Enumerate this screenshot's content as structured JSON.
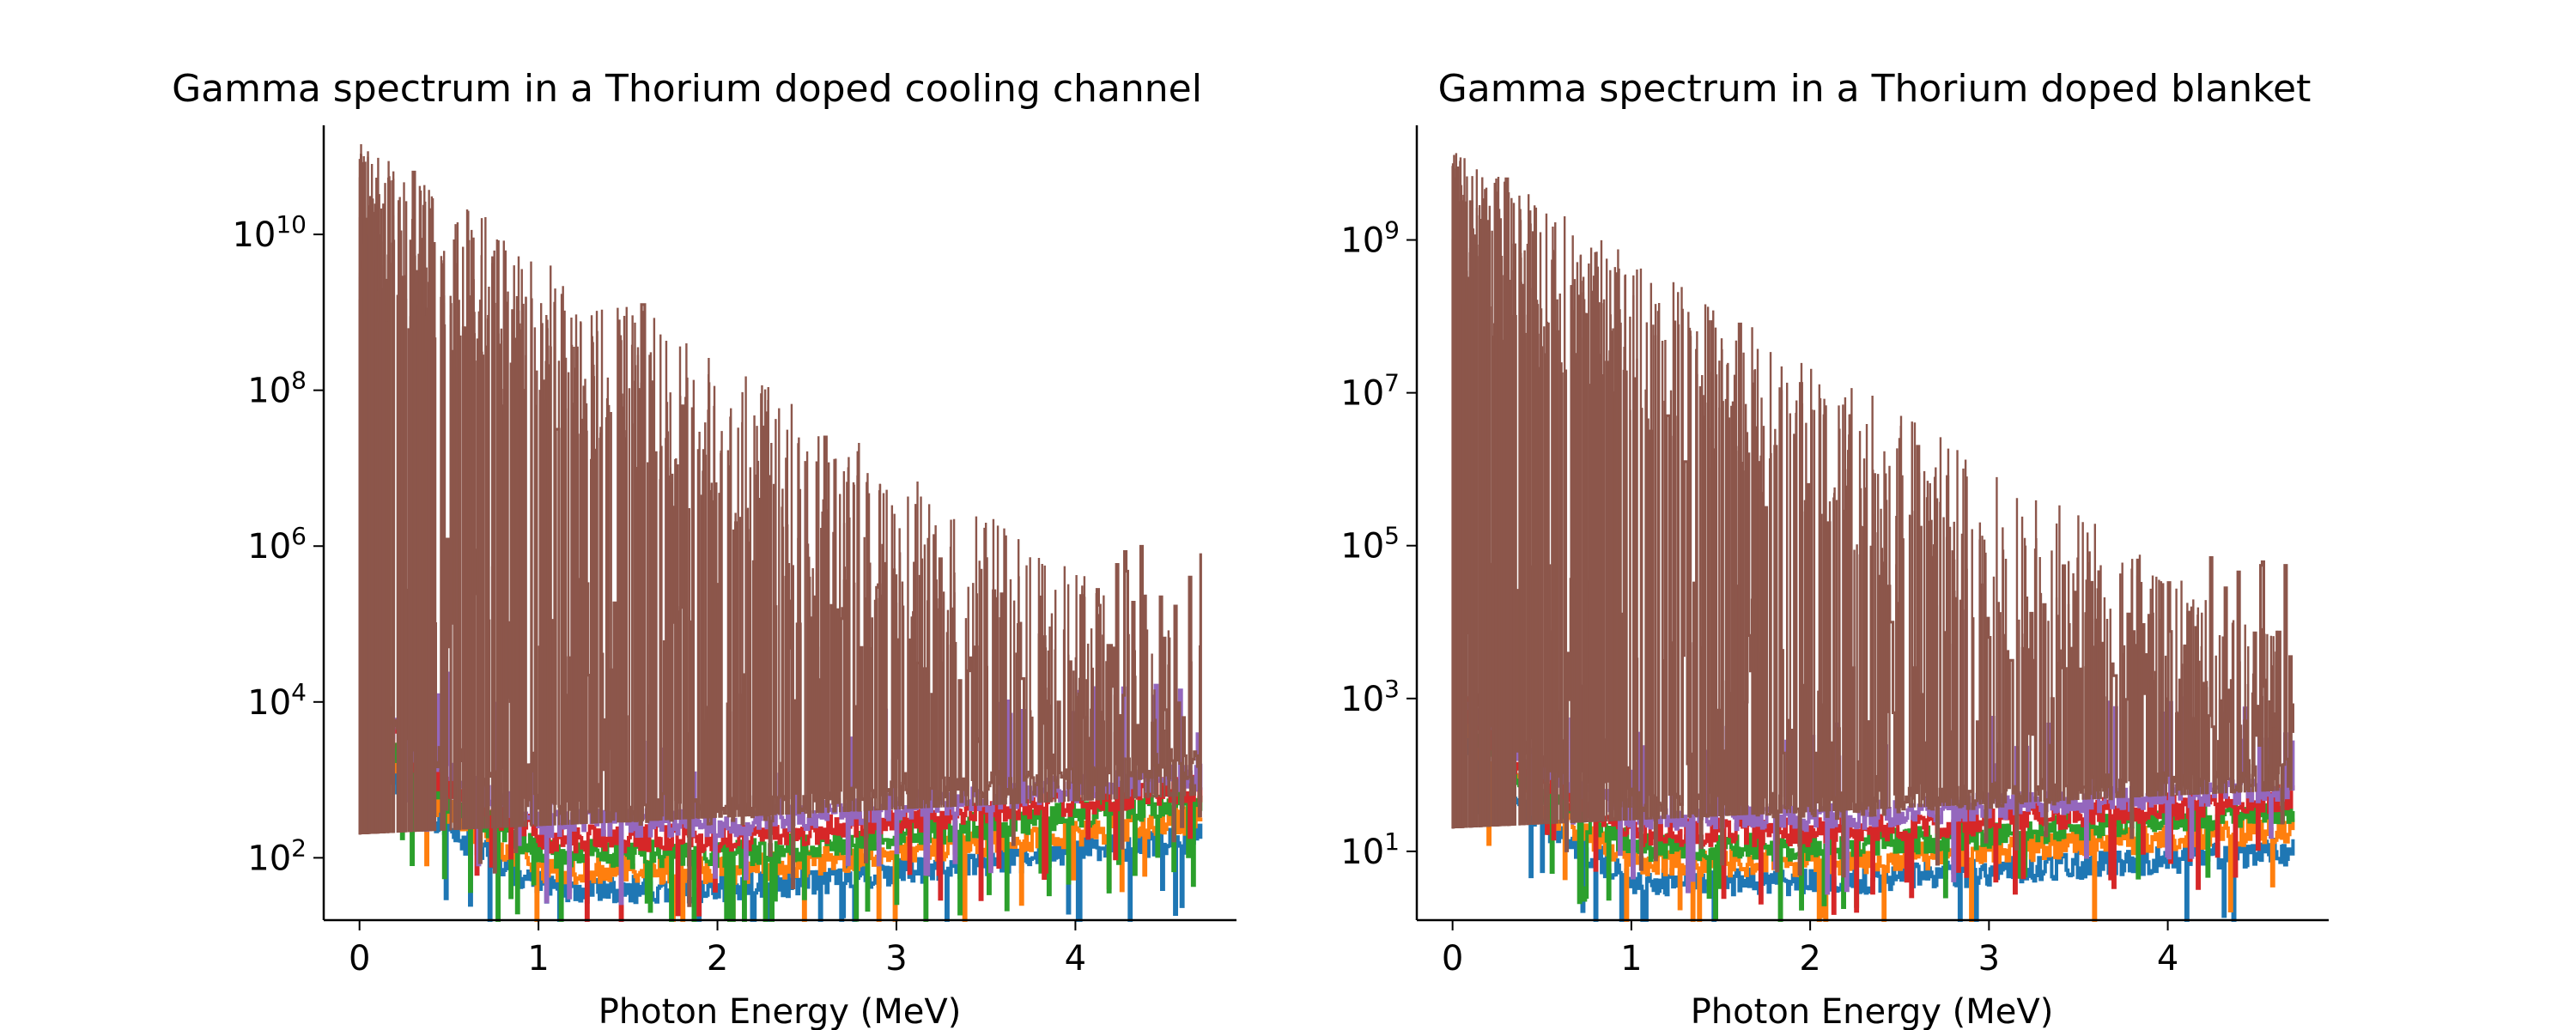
{
  "colors": {
    "series_1": "#1f77b4",
    "series_2": "#ff7f0e",
    "series_3": "#2ca02c",
    "series_4": "#d62728",
    "series_5": "#9467bd",
    "series_6": "#8c564b"
  },
  "chart_data": [
    {
      "type": "line",
      "title": "Gamma spectrum in a Thorium doped cooling channel",
      "xlabel": "Photon Energy (MeV)",
      "ylabel": "",
      "y_scale": "log",
      "xlim": [
        -0.2,
        4.9
      ],
      "ylim_exponent": [
        1.2,
        11.4
      ],
      "x_ticks": [
        "0",
        "1",
        "2",
        "3",
        "4"
      ],
      "y_ticks": [
        {
          "base": "10",
          "exp": "2"
        },
        {
          "base": "10",
          "exp": "4"
        },
        {
          "base": "10",
          "exp": "6"
        },
        {
          "base": "10",
          "exp": "8"
        },
        {
          "base": "10",
          "exp": "10"
        }
      ],
      "grid": false,
      "x_range_data": [
        0,
        4.7
      ],
      "series_baseline_floor_exponent": [
        1.6,
        1.85,
        2.05,
        2.25,
        2.45,
        2.6
      ],
      "baseline_at_zero_exponent": [
        4.1,
        4.25,
        4.35,
        4.45,
        4.55,
        4.6
      ],
      "baseline_at_end_exponent": [
        2.25,
        2.5,
        2.75,
        2.9,
        3.05,
        3.2
      ],
      "peaks": [
        {
          "x": 0.01,
          "y_exp": 10.8
        },
        {
          "x": 0.05,
          "y_exp": 10.0
        },
        {
          "x": 0.09,
          "y_exp": 9.5
        },
        {
          "x": 0.1,
          "y_exp": 10.5
        },
        {
          "x": 0.24,
          "y_exp": 8.2
        },
        {
          "x": 0.3,
          "y_exp": 10.8
        },
        {
          "x": 0.34,
          "y_exp": 9.0
        },
        {
          "x": 0.46,
          "y_exp": 9.2
        },
        {
          "x": 0.52,
          "y_exp": 8.5
        },
        {
          "x": 0.58,
          "y_exp": 8.8
        },
        {
          "x": 0.68,
          "y_exp": 8.2
        },
        {
          "x": 0.79,
          "y_exp": 7.8
        },
        {
          "x": 0.86,
          "y_exp": 8.4
        },
        {
          "x": 0.91,
          "y_exp": 8.0
        },
        {
          "x": 1.1,
          "y_exp": 7.5
        },
        {
          "x": 1.2,
          "y_exp": 7.7
        },
        {
          "x": 1.3,
          "y_exp": 7.1
        },
        {
          "x": 1.45,
          "y_exp": 7.0
        },
        {
          "x": 1.58,
          "y_exp": 9.1
        },
        {
          "x": 1.65,
          "y_exp": 7.2
        },
        {
          "x": 1.75,
          "y_exp": 6.5
        },
        {
          "x": 1.8,
          "y_exp": 7.8
        },
        {
          "x": 1.98,
          "y_exp": 6.8
        },
        {
          "x": 2.1,
          "y_exp": 6.3
        },
        {
          "x": 2.2,
          "y_exp": 5.8
        },
        {
          "x": 2.38,
          "y_exp": 5.6
        },
        {
          "x": 2.45,
          "y_exp": 5.0
        },
        {
          "x": 2.6,
          "y_exp": 7.4
        },
        {
          "x": 2.7,
          "y_exp": 5.2
        },
        {
          "x": 2.8,
          "y_exp": 4.7
        },
        {
          "x": 3.0,
          "y_exp": 4.8
        },
        {
          "x": 3.12,
          "y_exp": 4.5
        },
        {
          "x": 3.25,
          "y_exp": 4.5
        },
        {
          "x": 3.4,
          "y_exp": 4.4
        },
        {
          "x": 3.55,
          "y_exp": 4.6
        },
        {
          "x": 3.7,
          "y_exp": 4.3
        },
        {
          "x": 3.9,
          "y_exp": 4.0
        },
        {
          "x": 4.05,
          "y_exp": 3.8
        },
        {
          "x": 4.2,
          "y_exp": 4.2
        },
        {
          "x": 4.35,
          "y_exp": 3.7
        },
        {
          "x": 4.5,
          "y_exp": 3.9
        },
        {
          "x": 4.6,
          "y_exp": 3.8
        }
      ]
    },
    {
      "type": "line",
      "title": "Gamma spectrum in a Thorium doped blanket",
      "xlabel": "Photon Energy (MeV)",
      "ylabel": "",
      "y_scale": "log",
      "xlim": [
        -0.2,
        4.9
      ],
      "ylim_exponent": [
        0.1,
        10.5
      ],
      "x_ticks": [
        "0",
        "1",
        "2",
        "3",
        "4"
      ],
      "y_ticks": [
        {
          "base": "10",
          "exp": "1"
        },
        {
          "base": "10",
          "exp": "3"
        },
        {
          "base": "10",
          "exp": "5"
        },
        {
          "base": "10",
          "exp": "7"
        },
        {
          "base": "10",
          "exp": "9"
        }
      ],
      "grid": false,
      "x_range_data": [
        0,
        4.7
      ],
      "series_baseline_floor_exponent": [
        0.6,
        0.85,
        1.05,
        1.25,
        1.45,
        1.6
      ],
      "baseline_at_zero_exponent": [
        3.1,
        3.25,
        3.35,
        3.45,
        3.55,
        3.6
      ],
      "baseline_at_end_exponent": [
        1.0,
        1.3,
        1.55,
        1.7,
        1.85,
        2.0
      ],
      "peaks": [
        {
          "x": 0.01,
          "y_exp": 9.8
        },
        {
          "x": 0.05,
          "y_exp": 9.0
        },
        {
          "x": 0.09,
          "y_exp": 8.5
        },
        {
          "x": 0.1,
          "y_exp": 9.5
        },
        {
          "x": 0.24,
          "y_exp": 7.2
        },
        {
          "x": 0.3,
          "y_exp": 9.8
        },
        {
          "x": 0.34,
          "y_exp": 8.0
        },
        {
          "x": 0.46,
          "y_exp": 8.2
        },
        {
          "x": 0.52,
          "y_exp": 7.5
        },
        {
          "x": 0.58,
          "y_exp": 7.8
        },
        {
          "x": 0.68,
          "y_exp": 7.2
        },
        {
          "x": 0.79,
          "y_exp": 6.8
        },
        {
          "x": 0.86,
          "y_exp": 7.4
        },
        {
          "x": 0.91,
          "y_exp": 7.0
        },
        {
          "x": 1.1,
          "y_exp": 6.5
        },
        {
          "x": 1.2,
          "y_exp": 6.7
        },
        {
          "x": 1.3,
          "y_exp": 6.1
        },
        {
          "x": 1.45,
          "y_exp": 6.0
        },
        {
          "x": 1.6,
          "y_exp": 7.9
        },
        {
          "x": 1.65,
          "y_exp": 6.2
        },
        {
          "x": 1.75,
          "y_exp": 5.5
        },
        {
          "x": 1.8,
          "y_exp": 6.3
        },
        {
          "x": 1.98,
          "y_exp": 5.8
        },
        {
          "x": 2.1,
          "y_exp": 5.3
        },
        {
          "x": 2.2,
          "y_exp": 4.8
        },
        {
          "x": 2.38,
          "y_exp": 4.6
        },
        {
          "x": 2.45,
          "y_exp": 4.0
        },
        {
          "x": 2.6,
          "y_exp": 6.3
        },
        {
          "x": 2.7,
          "y_exp": 4.2
        },
        {
          "x": 2.8,
          "y_exp": 3.7
        },
        {
          "x": 3.0,
          "y_exp": 3.8
        },
        {
          "x": 3.12,
          "y_exp": 3.5
        },
        {
          "x": 3.25,
          "y_exp": 3.5
        },
        {
          "x": 3.4,
          "y_exp": 3.4
        },
        {
          "x": 3.55,
          "y_exp": 3.6
        },
        {
          "x": 3.7,
          "y_exp": 3.3
        },
        {
          "x": 3.9,
          "y_exp": 3.0
        },
        {
          "x": 4.05,
          "y_exp": 2.8
        },
        {
          "x": 4.2,
          "y_exp": 3.2
        },
        {
          "x": 4.35,
          "y_exp": 2.7
        },
        {
          "x": 4.5,
          "y_exp": 2.9
        },
        {
          "x": 4.6,
          "y_exp": 2.8
        }
      ]
    }
  ]
}
